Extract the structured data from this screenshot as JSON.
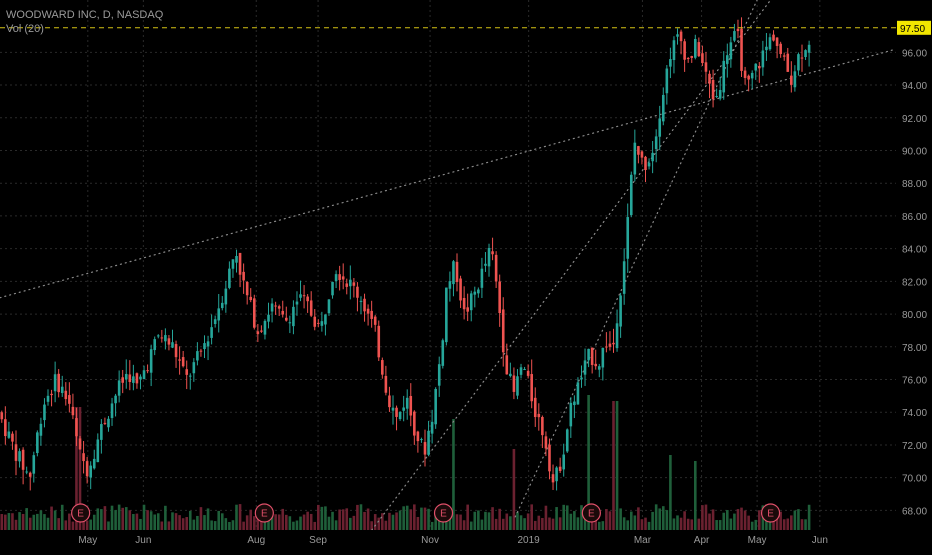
{
  "legend": {
    "title": "WOODWARD INC, D, NASDAQ",
    "volume": "Vol (20)"
  },
  "price_badge": "97.50",
  "earnings_marker": "E",
  "chart_data": {
    "type": "candlestick",
    "title": "WOODWARD INC, D, NASDAQ",
    "ylim": [
      66.8,
      99.2
    ],
    "y_ticks": [
      68,
      70,
      72,
      74,
      76,
      78,
      80,
      82,
      84,
      86,
      88,
      90,
      92,
      94,
      96
    ],
    "y_tick_labels": [
      "68.00",
      "70.00",
      "72.00",
      "74.00",
      "76.00",
      "78.00",
      "80.00",
      "82.00",
      "84.00",
      "86.00",
      "88.00",
      "90.00",
      "92.00",
      "94.00",
      "96.00"
    ],
    "x_labels": [
      {
        "label": "May",
        "t": 0.098
      },
      {
        "label": "Jun",
        "t": 0.16
      },
      {
        "label": "Aug",
        "t": 0.286
      },
      {
        "label": "Sep",
        "t": 0.355
      },
      {
        "label": "Nov",
        "t": 0.48
      },
      {
        "label": "2019",
        "t": 0.59
      },
      {
        "label": "Mar",
        "t": 0.717
      },
      {
        "label": "Apr",
        "t": 0.783
      },
      {
        "label": "May",
        "t": 0.845
      },
      {
        "label": "Jun",
        "t": 0.915
      }
    ],
    "resistance_level": 97.5,
    "price_path": [
      [
        0.0,
        74.0
      ],
      [
        0.02,
        71.5
      ],
      [
        0.035,
        70.0
      ],
      [
        0.05,
        74.5
      ],
      [
        0.065,
        76.0
      ],
      [
        0.08,
        74.5
      ],
      [
        0.09,
        71.5
      ],
      [
        0.1,
        70.5
      ],
      [
        0.115,
        73.0
      ],
      [
        0.13,
        75.0
      ],
      [
        0.145,
        76.5
      ],
      [
        0.155,
        75.5
      ],
      [
        0.17,
        77.5
      ],
      [
        0.18,
        78.8
      ],
      [
        0.195,
        78.0
      ],
      [
        0.21,
        76.0
      ],
      [
        0.225,
        77.5
      ],
      [
        0.24,
        79.5
      ],
      [
        0.255,
        82.0
      ],
      [
        0.265,
        84.0
      ],
      [
        0.275,
        81.5
      ],
      [
        0.29,
        79.0
      ],
      [
        0.305,
        80.5
      ],
      [
        0.32,
        79.5
      ],
      [
        0.335,
        81.0
      ],
      [
        0.345,
        80.5
      ],
      [
        0.36,
        79.0
      ],
      [
        0.375,
        83.0
      ],
      [
        0.39,
        82.0
      ],
      [
        0.405,
        81.0
      ],
      [
        0.42,
        79.0
      ],
      [
        0.435,
        75.0
      ],
      [
        0.445,
        73.5
      ],
      [
        0.455,
        75.0
      ],
      [
        0.465,
        73.0
      ],
      [
        0.475,
        71.5
      ],
      [
        0.485,
        74.0
      ],
      [
        0.495,
        78.0
      ],
      [
        0.5,
        81.5
      ],
      [
        0.51,
        83.0
      ],
      [
        0.52,
        80.0
      ],
      [
        0.53,
        81.0
      ],
      [
        0.54,
        82.5
      ],
      [
        0.55,
        84.0
      ],
      [
        0.558,
        81.0
      ],
      [
        0.565,
        77.5
      ],
      [
        0.575,
        75.0
      ],
      [
        0.585,
        77.0
      ],
      [
        0.6,
        74.0
      ],
      [
        0.61,
        72.5
      ],
      [
        0.62,
        69.5
      ],
      [
        0.63,
        71.5
      ],
      [
        0.64,
        74.5
      ],
      [
        0.65,
        76.0
      ],
      [
        0.66,
        77.5
      ],
      [
        0.67,
        77.0
      ],
      [
        0.68,
        78.5
      ],
      [
        0.685,
        77.5
      ],
      [
        0.7,
        84.0
      ],
      [
        0.71,
        90.5
      ],
      [
        0.72,
        89.0
      ],
      [
        0.73,
        90.0
      ],
      [
        0.74,
        93.0
      ],
      [
        0.75,
        96.0
      ],
      [
        0.76,
        97.0
      ],
      [
        0.77,
        95.5
      ],
      [
        0.78,
        96.5
      ],
      [
        0.79,
        94.5
      ],
      [
        0.8,
        93.0
      ],
      [
        0.805,
        94.0
      ],
      [
        0.815,
        96.5
      ],
      [
        0.825,
        97.0
      ],
      [
        0.835,
        93.5
      ],
      [
        0.845,
        95.0
      ],
      [
        0.855,
        96.0
      ],
      [
        0.865,
        97.2
      ],
      [
        0.875,
        95.5
      ],
      [
        0.885,
        94.5
      ],
      [
        0.895,
        96.0
      ],
      [
        0.905,
        96.8
      ]
    ],
    "volume_spikes": [
      [
        0.085,
        0.9
      ],
      [
        0.505,
        0.8
      ],
      [
        0.57,
        0.55
      ],
      [
        0.655,
        1.0
      ],
      [
        0.685,
        0.95
      ],
      [
        0.745,
        0.5
      ],
      [
        0.775,
        0.45
      ]
    ],
    "earnings_events": [
      0.09,
      0.295,
      0.495,
      0.66,
      0.86
    ]
  }
}
